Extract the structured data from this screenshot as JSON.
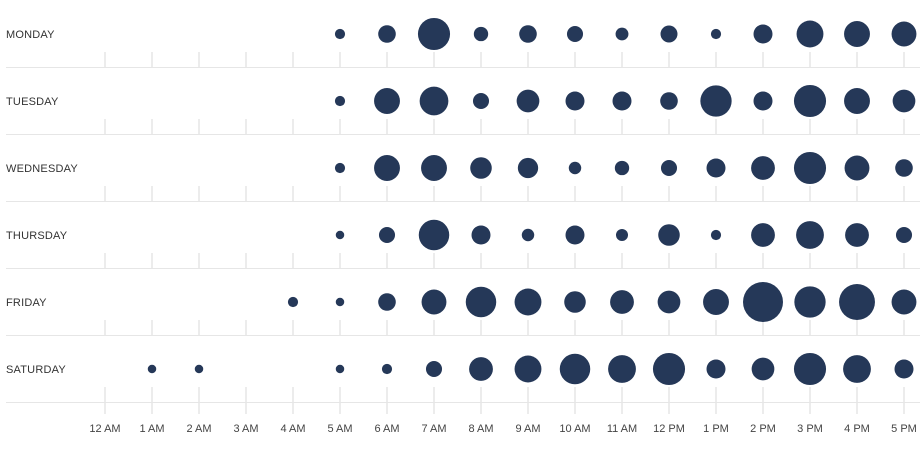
{
  "chart_data": {
    "type": "scatter",
    "subtype": "punchcard",
    "title": "",
    "xlabel": "",
    "ylabel": "",
    "days": [
      "MONDAY",
      "TUESDAY",
      "WEDNESDAY",
      "THURSDAY",
      "FRIDAY",
      "SATURDAY"
    ],
    "hours": [
      "12 AM",
      "1 AM",
      "2 AM",
      "3 AM",
      "4 AM",
      "5 AM",
      "6 AM",
      "7 AM",
      "8 AM",
      "9 AM",
      "10 AM",
      "11 AM",
      "12 PM",
      "1 PM",
      "2 PM",
      "3 PM",
      "4 PM",
      "5 PM"
    ],
    "values": [
      [
        0,
        0,
        0,
        0,
        0,
        1,
        3,
        10,
        2,
        3,
        2.5,
        1.6,
        2.8,
        1,
        3.5,
        7,
        6.5,
        6
      ],
      [
        0,
        0,
        0,
        0,
        0,
        1,
        6.5,
        8,
        2.5,
        5,
        3.5,
        3.5,
        3,
        9.5,
        3.5,
        10,
        6.5,
        5
      ],
      [
        0,
        0,
        0,
        0,
        0,
        1,
        6.5,
        6.5,
        4.5,
        4,
        1.5,
        2,
        2.5,
        3.5,
        5.5,
        10,
        6,
        3
      ],
      [
        0,
        0,
        0,
        0,
        0,
        0.7,
        2.5,
        9,
        3.5,
        1.5,
        3.5,
        1.4,
        4.5,
        1,
        5.5,
        7.5,
        5.5,
        2.5
      ],
      [
        0,
        0,
        0,
        0,
        1,
        0.7,
        3,
        6,
        9,
        7,
        4.5,
        5.5,
        5,
        6.5,
        15.5,
        9.5,
        12.5,
        6
      ],
      [
        0,
        0.7,
        0.7,
        0,
        0,
        0.7,
        1,
        2.5,
        5.5,
        7,
        9,
        7.5,
        10,
        3.5,
        5,
        10,
        7.5,
        3.5
      ]
    ],
    "value_scale": "bubble area proportional to value (relative activity)",
    "grid": false,
    "legend": "none",
    "bubble_color": "#253858"
  }
}
